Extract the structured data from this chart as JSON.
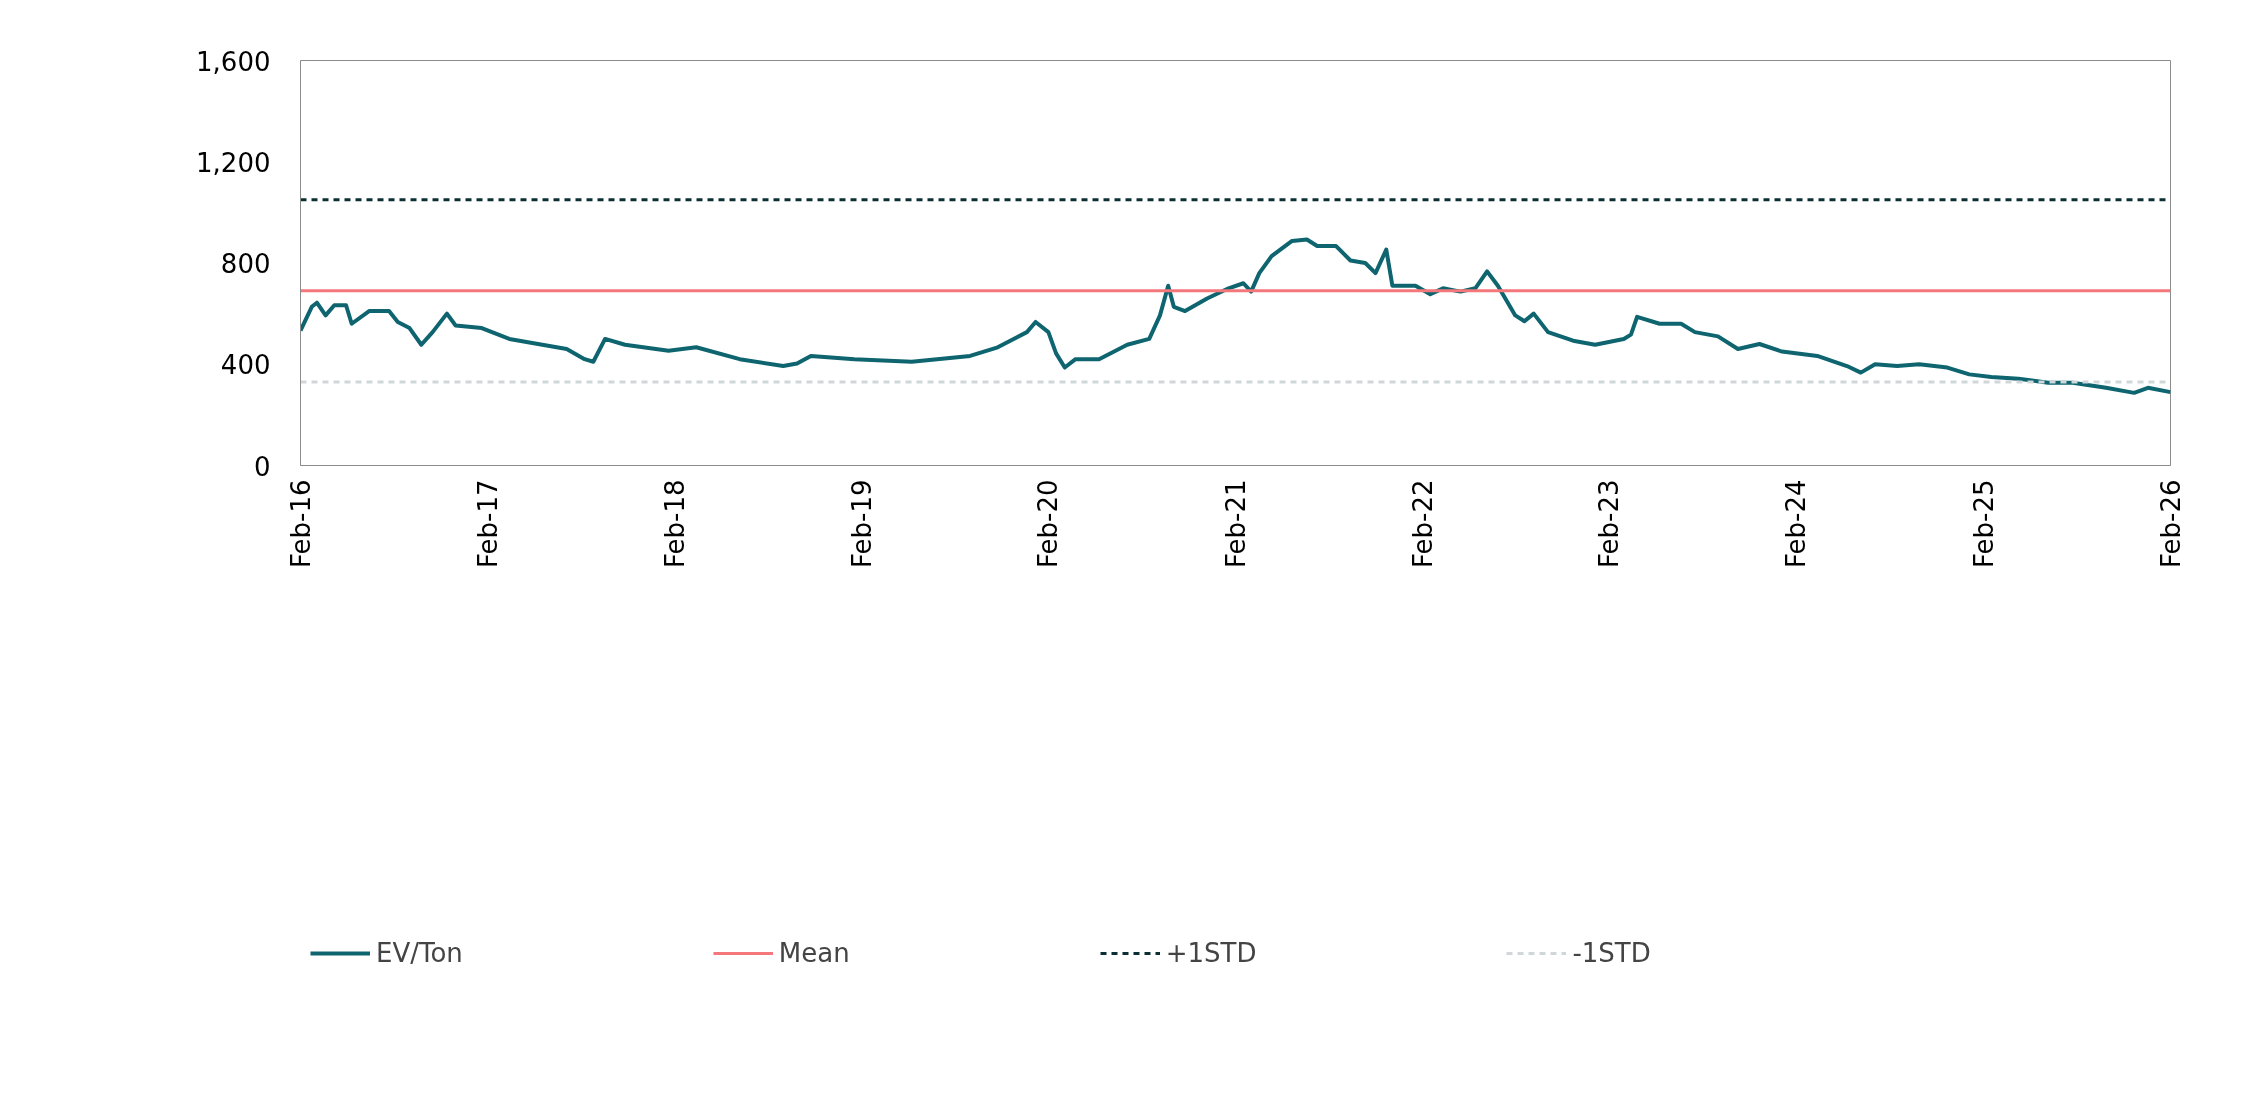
{
  "chart_data": {
    "type": "line",
    "x": [
      "2016-02-01",
      "2016-02-23",
      "2016-03-04",
      "2016-03-21",
      "2016-04-07",
      "2016-04-30",
      "2016-05-11",
      "2016-06-14",
      "2016-07-23",
      "2016-08-09",
      "2016-09-01",
      "2016-09-24",
      "2016-10-16",
      "2016-11-13",
      "2016-11-30",
      "2017-01-20",
      "2017-03-15",
      "2017-05-10",
      "2017-07-05",
      "2017-08-09",
      "2017-08-26",
      "2017-09-18",
      "2017-10-27",
      "2018-01-20",
      "2018-03-15",
      "2018-06-08",
      "2018-09-01",
      "2018-09-28",
      "2018-10-25",
      "2019-01-18",
      "2019-05-10",
      "2019-09-01",
      "2019-10-25",
      "2019-12-21",
      "2020-01-07",
      "2020-02-01",
      "2020-02-16",
      "2020-03-04",
      "2020-03-25",
      "2020-05-10",
      "2020-07-04",
      "2020-08-16",
      "2020-09-06",
      "2020-09-22",
      "2020-10-03",
      "2020-10-25",
      "2020-12-07",
      "2021-01-18",
      "2021-02-16",
      "2021-03-03",
      "2021-03-19",
      "2021-04-12",
      "2021-05-22",
      "2021-06-20",
      "2021-07-10",
      "2021-08-16",
      "2021-09-13",
      "2021-10-12",
      "2021-11-01",
      "2021-11-22",
      "2021-12-04",
      "2022-01-18",
      "2022-02-16",
      "2022-03-13",
      "2022-04-16",
      "2022-05-15",
      "2022-06-07",
      "2022-06-28",
      "2022-08-01",
      "2022-08-19",
      "2022-09-06",
      "2022-10-04",
      "2022-11-22",
      "2023-01-04",
      "2023-03-01",
      "2023-03-15",
      "2023-03-27",
      "2023-05-10",
      "2023-06-21",
      "2023-07-18",
      "2023-09-01",
      "2023-10-10",
      "2023-11-21",
      "2024-01-04",
      "2024-03-13",
      "2024-05-10",
      "2024-06-06",
      "2024-07-04",
      "2024-08-16",
      "2024-09-28",
      "2024-11-22",
      "2025-01-04",
      "2025-02-16",
      "2025-04-10",
      "2025-06-07",
      "2025-07-25",
      "2025-09-28",
      "2025-11-22",
      "2025-12-19",
      "2026-02-01"
    ],
    "series": [
      {
        "name": "EV/Ton",
        "color": "#0e6570",
        "values": [
          533,
          627,
          643,
          593,
          633,
          633,
          560,
          610,
          610,
          567,
          543,
          477,
          527,
          600,
          553,
          543,
          500,
          480,
          460,
          420,
          410,
          500,
          477,
          453,
          467,
          420,
          393,
          403,
          433,
          420,
          410,
          433,
          467,
          527,
          567,
          527,
          443,
          387,
          420,
          420,
          477,
          500,
          593,
          710,
          627,
          610,
          660,
          700,
          720,
          687,
          760,
          827,
          887,
          893,
          867,
          867,
          810,
          800,
          760,
          853,
          710,
          710,
          677,
          700,
          687,
          700,
          767,
          710,
          593,
          570,
          600,
          527,
          493,
          477,
          500,
          517,
          587,
          560,
          560,
          527,
          510,
          460,
          480,
          450,
          433,
          393,
          367,
          400,
          393,
          400,
          387,
          360,
          350,
          343,
          327,
          327,
          307,
          287,
          307,
          290
        ]
      }
    ],
    "ref_lines": [
      {
        "axis": "y",
        "value": 690,
        "label": "Mean",
        "color": "#f4777c",
        "line_style": "solid"
      },
      {
        "axis": "y",
        "value": 1050,
        "label": "+1STD",
        "color": "#0b2f33",
        "line_style": "dashed"
      },
      {
        "axis": "y",
        "value": 330,
        "label": "-1STD",
        "color": "#d0d7d9",
        "line_style": "dashed"
      }
    ],
    "xlim": [
      "2016-02-01",
      "2026-02-01"
    ],
    "xticks": [
      {
        "value": "2016-02-01",
        "label": "Feb-16"
      },
      {
        "value": "2017-02-01",
        "label": "Feb-17"
      },
      {
        "value": "2018-02-01",
        "label": "Feb-18"
      },
      {
        "value": "2019-02-01",
        "label": "Feb-19"
      },
      {
        "value": "2020-02-01",
        "label": "Feb-20"
      },
      {
        "value": "2021-02-01",
        "label": "Feb-21"
      },
      {
        "value": "2022-02-01",
        "label": "Feb-22"
      },
      {
        "value": "2023-02-01",
        "label": "Feb-23"
      },
      {
        "value": "2024-02-01",
        "label": "Feb-24"
      },
      {
        "value": "2025-02-01",
        "label": "Feb-25"
      },
      {
        "value": "2026-02-01",
        "label": "Feb-26"
      }
    ],
    "ylim": [
      0,
      1600
    ],
    "yticks": [
      0,
      400,
      800,
      {
        "value": 1200,
        "label": "1,200"
      },
      {
        "value": 1600,
        "label": "1,600"
      }
    ],
    "grid": false,
    "legend": "bottom",
    "marker": "none",
    "line_style": "solid"
  }
}
